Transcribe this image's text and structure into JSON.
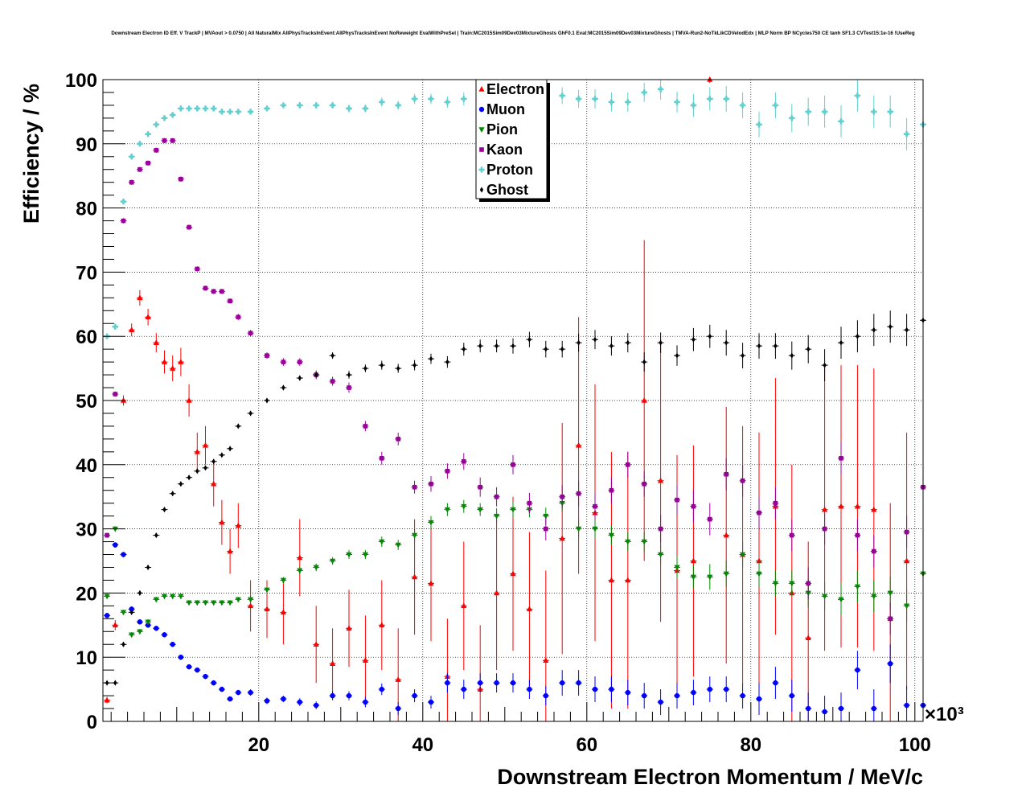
{
  "chart_data": {
    "type": "scatter",
    "title": "Downstream Electron ID Eff. V TrackP | MVAout > 0.0750 | All NaturalMix AllPhysTracksInEvent:AllPhysTracksInEvent NoReweight EvalWithPreSel | Train:MC2015Sim09Dev03MixtureGhosts GhF0.1 Eval:MC2015Sim09Dev03MixtureGhosts | TMVA-Run2-NoTkLikCDVelodEdx | MLP Norm BP NCycles750 CE tanh SF1.3 CVTest15:1e-16 !UseReg",
    "xlabel": "Downstream Electron Momentum / MeV/c",
    "ylabel": "Efficiency / %",
    "x_multiplier_label": "×10³",
    "xlim": [
      1,
      101
    ],
    "ylim": [
      0,
      100
    ],
    "xticks": [
      "20",
      "40",
      "60",
      "80",
      "100"
    ],
    "yticks": [
      "0",
      "10",
      "20",
      "30",
      "40",
      "50",
      "60",
      "70",
      "80",
      "90",
      "100"
    ],
    "grid": true,
    "legend_position": "top-center",
    "series": [
      {
        "name": "Electron",
        "color": "#ff0000",
        "marker": "triangle-up",
        "x": [
          1.5,
          2.5,
          3.5,
          4.5,
          5.5,
          6.5,
          7.5,
          8.5,
          9.5,
          10.5,
          11.5,
          12.5,
          13.5,
          14.5,
          15.5,
          16.5,
          17.5,
          19,
          21,
          23,
          25,
          27,
          29,
          31,
          33,
          35,
          37,
          39,
          41,
          43,
          45,
          47,
          49,
          51,
          53,
          55,
          57,
          59,
          61,
          63,
          65,
          67,
          69,
          71,
          73,
          75,
          77,
          79,
          81,
          83,
          85,
          87,
          89,
          91,
          93,
          95,
          97,
          99
        ],
        "y": [
          3.3,
          15,
          50,
          61,
          66,
          63,
          59,
          56,
          55,
          56,
          50,
          42,
          43,
          37,
          31,
          26.5,
          30.5,
          18,
          17.5,
          17,
          25.5,
          12,
          9,
          14.5,
          9.5,
          15,
          6.5,
          22.5,
          21.5,
          7,
          18,
          5,
          20,
          23,
          17.5,
          9.5,
          28.5,
          43,
          32.5,
          22,
          22,
          50,
          37.5,
          23.5,
          25,
          100,
          29,
          26,
          25,
          33.5,
          20,
          13,
          33,
          33.5,
          33.5,
          33,
          16,
          25
        ],
        "err": [
          0.5,
          0.8,
          0.8,
          1,
          1.2,
          1.3,
          1.5,
          1.8,
          2,
          2.2,
          2.5,
          3,
          3,
          3.5,
          3.5,
          3.5,
          3.5,
          4,
          4.5,
          5,
          6,
          6,
          5.5,
          6,
          7,
          7,
          8,
          9,
          9,
          9,
          10,
          10,
          12,
          12,
          12,
          14,
          18,
          20,
          20,
          20,
          20,
          25,
          22,
          18,
          18,
          0.5,
          20,
          20,
          20,
          20,
          20,
          15,
          22,
          22,
          22,
          22,
          18,
          20
        ]
      },
      {
        "name": "Muon",
        "color": "#0000ff",
        "marker": "circle",
        "x": [
          1.5,
          2.5,
          3.5,
          4.5,
          5.5,
          6.5,
          7.5,
          8.5,
          9.5,
          10.5,
          11.5,
          12.5,
          13.5,
          14.5,
          15.5,
          16.5,
          17.5,
          19,
          21,
          23,
          25,
          27,
          29,
          31,
          33,
          35,
          37,
          39,
          41,
          43,
          45,
          47,
          49,
          51,
          53,
          55,
          57,
          59,
          61,
          63,
          65,
          67,
          69,
          71,
          73,
          75,
          77,
          79,
          81,
          83,
          85,
          87,
          89,
          91,
          93,
          95,
          97,
          99,
          101
        ],
        "y": [
          16.5,
          27.5,
          26,
          17.5,
          15.5,
          15,
          14.5,
          13.5,
          12,
          10,
          8.5,
          8,
          7,
          6,
          5,
          3.5,
          4.5,
          4.5,
          3.2,
          3.5,
          3,
          2.5,
          4,
          4,
          3,
          5,
          2,
          4,
          3,
          6,
          5,
          6,
          6,
          6,
          5,
          4,
          6,
          6,
          5,
          5,
          4.5,
          4,
          3,
          4,
          4.5,
          5,
          5,
          4,
          3.5,
          6,
          4,
          2,
          1.5,
          2,
          8,
          2,
          9,
          2.5,
          2.5
        ],
        "err": [
          0.4,
          0.4,
          0.4,
          0.4,
          0.4,
          0.4,
          0.4,
          0.4,
          0.4,
          0.4,
          0.4,
          0.4,
          0.4,
          0.4,
          0.4,
          0.4,
          0.4,
          0.5,
          0.5,
          0.5,
          0.6,
          0.6,
          0.7,
          0.7,
          0.8,
          0.9,
          1,
          1,
          1,
          1.5,
          1.5,
          1.5,
          1.5,
          1.5,
          1.5,
          1.5,
          2,
          2,
          2,
          2,
          2,
          2,
          2,
          2,
          2,
          2,
          2,
          2,
          2.5,
          2.5,
          2.5,
          2.5,
          2.5,
          2.5,
          3,
          3,
          3,
          3,
          3
        ]
      },
      {
        "name": "Pion",
        "color": "#008b00",
        "marker": "triangle-down",
        "x": [
          1.5,
          2.5,
          3.5,
          4.5,
          5.5,
          6.5,
          7.5,
          8.5,
          9.5,
          10.5,
          11.5,
          12.5,
          13.5,
          14.5,
          15.5,
          16.5,
          17.5,
          19,
          21,
          23,
          25,
          27,
          29,
          31,
          33,
          35,
          37,
          39,
          41,
          43,
          45,
          47,
          49,
          51,
          53,
          55,
          57,
          59,
          61,
          63,
          65,
          67,
          69,
          71,
          73,
          75,
          77,
          79,
          81,
          83,
          85,
          87,
          89,
          91,
          93,
          95,
          97,
          99,
          101
        ],
        "y": [
          19.5,
          30,
          17,
          13.5,
          14,
          15.5,
          19,
          19.5,
          19.5,
          19.5,
          18.5,
          18.5,
          18.5,
          18.5,
          18.5,
          18.5,
          19,
          19,
          20.5,
          22,
          23.5,
          24,
          25,
          26,
          26,
          28,
          27.5,
          29,
          31,
          33,
          33.5,
          33,
          32,
          33,
          33,
          32,
          34,
          30,
          30,
          29,
          28,
          28,
          26,
          24,
          22.5,
          22.5,
          23,
          26,
          23,
          21.5,
          21.5,
          20,
          19.5,
          19,
          21,
          19.5,
          20,
          18,
          23
        ],
        "err": [
          0.4,
          0.4,
          0.4,
          0.4,
          0.4,
          0.4,
          0.4,
          0.4,
          0.4,
          0.4,
          0.4,
          0.4,
          0.4,
          0.4,
          0.4,
          0.4,
          0.4,
          0.5,
          0.5,
          0.5,
          0.6,
          0.6,
          0.6,
          0.7,
          0.7,
          0.8,
          0.8,
          1,
          1,
          1,
          1,
          1,
          1.2,
          1.2,
          1.2,
          1.3,
          1.3,
          1.4,
          1.4,
          1.5,
          1.5,
          1.5,
          1.6,
          1.8,
          1.8,
          2,
          2,
          2,
          2,
          2,
          2,
          2.2,
          2.2,
          2.5,
          2.5,
          2.5,
          2.5,
          2.5,
          2.5
        ]
      },
      {
        "name": "Kaon",
        "color": "#990099",
        "marker": "square",
        "x": [
          1.5,
          2.5,
          3.5,
          4.5,
          5.5,
          6.5,
          7.5,
          8.5,
          9.5,
          10.5,
          11.5,
          12.5,
          13.5,
          14.5,
          15.5,
          16.5,
          17.5,
          19,
          21,
          23,
          25,
          27,
          29,
          31,
          33,
          35,
          37,
          39,
          41,
          43,
          45,
          47,
          49,
          51,
          53,
          55,
          57,
          59,
          61,
          63,
          65,
          67,
          69,
          71,
          73,
          75,
          77,
          79,
          81,
          83,
          85,
          87,
          89,
          91,
          93,
          95,
          97,
          99,
          101
        ],
        "y": [
          29,
          51,
          78,
          84,
          86,
          87,
          89,
          90.5,
          90.5,
          84.5,
          77,
          70.5,
          67.5,
          67,
          67,
          65.5,
          63,
          60.5,
          57,
          56,
          56,
          54,
          53,
          52,
          46,
          41,
          44,
          36.5,
          37,
          39,
          40.5,
          36.5,
          35,
          40,
          34,
          30,
          35,
          35.5,
          33.5,
          36,
          40,
          37,
          30,
          34.5,
          33.5,
          31.5,
          38.5,
          37.5,
          32.5,
          34,
          29,
          21.5,
          30,
          41,
          29,
          26.5,
          16,
          29.5,
          36.5
        ],
        "err": [
          0.4,
          0.4,
          0.4,
          0.4,
          0.4,
          0.4,
          0.4,
          0.4,
          0.4,
          0.4,
          0.4,
          0.4,
          0.4,
          0.4,
          0.4,
          0.4,
          0.5,
          0.5,
          0.5,
          0.6,
          0.6,
          0.7,
          0.7,
          0.8,
          0.8,
          1,
          1,
          1,
          1.2,
          1.2,
          1.3,
          1.5,
          1.5,
          1.5,
          1.6,
          1.8,
          1.8,
          2,
          2,
          2,
          2,
          2,
          2.2,
          2.2,
          2.5,
          2.5,
          2.5,
          2.5,
          2.5,
          2.5,
          2.5,
          2.5,
          2.5,
          2.5,
          2.5,
          2.5,
          2.5,
          2.5,
          3
        ]
      },
      {
        "name": "Proton",
        "color": "#5fcfcf",
        "marker": "cross",
        "x": [
          1.5,
          2.5,
          3.5,
          4.5,
          5.5,
          6.5,
          7.5,
          8.5,
          9.5,
          10.5,
          11.5,
          12.5,
          13.5,
          14.5,
          15.5,
          16.5,
          17.5,
          19,
          21,
          23,
          25,
          27,
          29,
          31,
          33,
          35,
          37,
          39,
          41,
          43,
          45,
          47,
          49,
          51,
          53,
          55,
          57,
          59,
          61,
          63,
          65,
          67,
          69,
          71,
          73,
          75,
          77,
          79,
          81,
          83,
          85,
          87,
          89,
          91,
          93,
          95,
          97,
          99,
          101
        ],
        "y": [
          60,
          61.5,
          81,
          88,
          90,
          91.5,
          93,
          94,
          94.5,
          95.5,
          95.5,
          95.5,
          95.5,
          95.5,
          95,
          95,
          95,
          95,
          95.5,
          96,
          96,
          96,
          96,
          95.5,
          95.5,
          96.5,
          96,
          97,
          97,
          96.5,
          97,
          97,
          97,
          96.5,
          96.5,
          97,
          97.5,
          97,
          97,
          96.5,
          96.5,
          98,
          98.5,
          96.5,
          96,
          97,
          97,
          96,
          93,
          96,
          94,
          95,
          95,
          93.5,
          97.5,
          95,
          95,
          91.5,
          93
        ],
        "err": [
          0.3,
          0.3,
          0.3,
          0.3,
          0.3,
          0.3,
          0.3,
          0.3,
          0.3,
          0.3,
          0.3,
          0.3,
          0.3,
          0.3,
          0.3,
          0.3,
          0.3,
          0.4,
          0.4,
          0.4,
          0.5,
          0.5,
          0.5,
          0.6,
          0.6,
          0.7,
          0.7,
          0.8,
          0.8,
          0.9,
          1,
          1,
          1,
          1.2,
          1.2,
          1.3,
          1.3,
          1.4,
          1.5,
          1.5,
          1.5,
          1.5,
          1.6,
          1.6,
          1.8,
          1.8,
          2,
          2,
          2,
          2,
          2.2,
          2.2,
          2.5,
          2.5,
          2.5,
          2.5,
          2.5,
          2.5,
          3
        ]
      },
      {
        "name": "Ghost",
        "color": "#000000",
        "marker": "diamond",
        "x": [
          1.5,
          2.5,
          3.5,
          4.5,
          5.5,
          6.5,
          7.5,
          8.5,
          9.5,
          10.5,
          11.5,
          12.5,
          13.5,
          14.5,
          15.5,
          16.5,
          17.5,
          19,
          21,
          23,
          25,
          27,
          29,
          31,
          33,
          35,
          37,
          39,
          41,
          43,
          45,
          47,
          49,
          51,
          53,
          55,
          57,
          59,
          61,
          63,
          65,
          67,
          69,
          71,
          73,
          75,
          77,
          79,
          81,
          83,
          85,
          87,
          89,
          91,
          93,
          95,
          97,
          99,
          101
        ],
        "y": [
          6,
          6,
          12,
          17,
          20,
          24,
          29,
          33,
          35.5,
          37,
          38,
          39,
          39.5,
          40.5,
          41.5,
          42.5,
          46,
          48,
          50,
          52,
          53.5,
          54,
          57,
          54,
          55,
          55.5,
          55,
          55.5,
          56.5,
          56,
          58,
          58.5,
          58.5,
          58.5,
          59.5,
          58,
          58,
          59,
          59.5,
          58.5,
          59,
          56,
          59,
          57,
          59.5,
          60,
          59,
          57,
          58.5,
          58.5,
          57,
          58,
          55.5,
          59,
          60,
          61,
          61.5,
          61,
          62.5
        ],
        "err": [
          0.2,
          0.2,
          0.2,
          0.2,
          0.2,
          0.2,
          0.2,
          0.2,
          0.2,
          0.2,
          0.2,
          0.2,
          0.2,
          0.2,
          0.2,
          0.2,
          0.3,
          0.3,
          0.3,
          0.4,
          0.4,
          0.5,
          0.5,
          0.6,
          0.6,
          0.7,
          0.7,
          0.8,
          0.8,
          0.9,
          1,
          1,
          1,
          1.2,
          1.2,
          1.3,
          1.3,
          1.4,
          1.5,
          1.5,
          1.5,
          1.5,
          1.6,
          1.6,
          1.8,
          1.8,
          2,
          2,
          2,
          2,
          2.2,
          2.2,
          2.5,
          2.5,
          2.5,
          2.5,
          2.5,
          2.5,
          3
        ]
      }
    ]
  }
}
